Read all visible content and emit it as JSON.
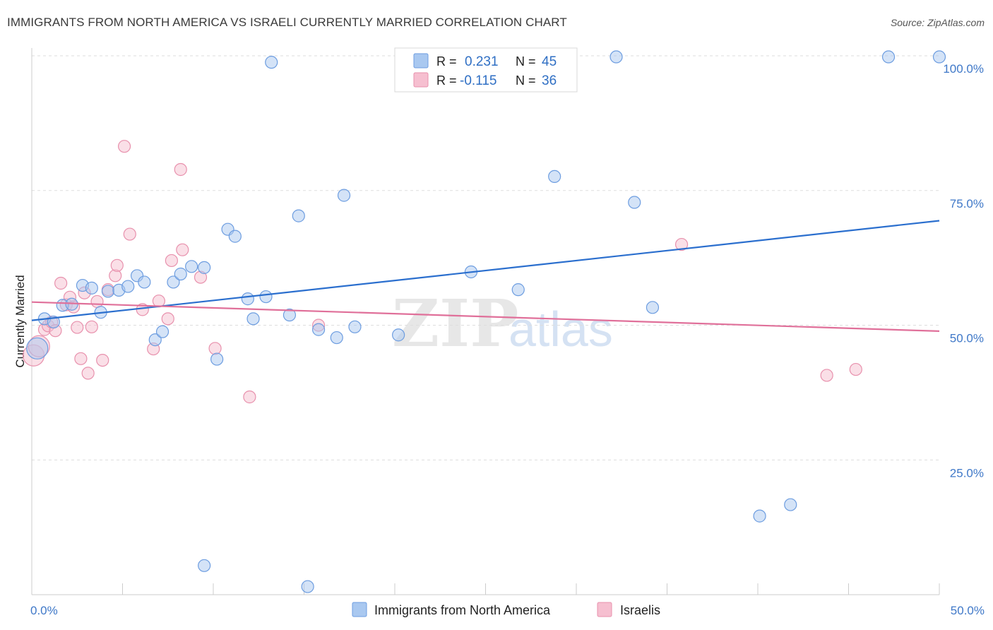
{
  "header": {
    "title": "IMMIGRANTS FROM NORTH AMERICA VS ISRAELI CURRENTLY MARRIED CORRELATION CHART",
    "source": "Source: ZipAtlas.com"
  },
  "watermark": {
    "part1": "ZIP",
    "part2": "atlas"
  },
  "colors": {
    "blue_fill": "#a9c8f0",
    "blue_stroke": "#6d9de0",
    "blue_line": "#2b6fce",
    "pink_fill": "#f6bfd0",
    "pink_stroke": "#e891ad",
    "pink_line": "#e0709a",
    "tick_text": "#3f78c8",
    "grid": "#dddddd"
  },
  "legend": {
    "rows": [
      {
        "r_label": "R =",
        "r_value": "0.231",
        "n_label": "N =",
        "n_value": "45"
      },
      {
        "r_label": "R =",
        "r_value": "-0.115",
        "n_label": "N =",
        "n_value": "36"
      }
    ]
  },
  "chart_data": {
    "type": "scatter",
    "title": "IMMIGRANTS FROM NORTH AMERICA VS ISRAELI CURRENTLY MARRIED CORRELATION CHART",
    "xlabel": "",
    "ylabel": "Currently Married",
    "xlim": [
      0,
      50
    ],
    "ylim": [
      0,
      100
    ],
    "x_tick_labels": [
      "0.0%",
      "50.0%"
    ],
    "y_ticks": [
      25,
      50,
      75,
      100
    ],
    "y_tick_labels": [
      "25.0%",
      "50.0%",
      "75.0%",
      "100.0%"
    ],
    "grid": "horizontal dashed",
    "legend_position": "top-center",
    "series": [
      {
        "name": "Immigrants from North America",
        "r": 0.231,
        "n": 45,
        "trend": {
          "x": [
            0,
            50
          ],
          "y": [
            50.9,
            69.4
          ]
        },
        "points": [
          [
            0.3,
            45.7
          ],
          [
            0.7,
            51.2
          ],
          [
            1.2,
            50.6
          ],
          [
            1.7,
            53.7
          ],
          [
            2.2,
            53.9
          ],
          [
            2.8,
            57.4
          ],
          [
            3.3,
            56.9
          ],
          [
            3.8,
            52.4
          ],
          [
            4.2,
            56.3
          ],
          [
            4.8,
            56.5
          ],
          [
            5.3,
            57.2
          ],
          [
            5.8,
            59.2
          ],
          [
            6.2,
            58.0
          ],
          [
            6.8,
            47.3
          ],
          [
            7.2,
            48.8
          ],
          [
            7.8,
            58.0
          ],
          [
            8.2,
            59.5
          ],
          [
            8.8,
            60.9
          ],
          [
            9.5,
            60.7
          ],
          [
            9.5,
            5.4
          ],
          [
            10.2,
            43.7
          ],
          [
            10.8,
            67.8
          ],
          [
            11.2,
            66.5
          ],
          [
            11.9,
            54.9
          ],
          [
            12.2,
            51.2
          ],
          [
            12.9,
            55.3
          ],
          [
            13.2,
            98.8
          ],
          [
            14.2,
            51.9
          ],
          [
            14.7,
            70.3
          ],
          [
            15.2,
            1.5
          ],
          [
            15.8,
            49.2
          ],
          [
            16.8,
            47.7
          ],
          [
            17.2,
            74.1
          ],
          [
            17.8,
            49.7
          ],
          [
            20.2,
            48.2
          ],
          [
            24.2,
            59.9
          ],
          [
            26.8,
            56.6
          ],
          [
            28.8,
            77.6
          ],
          [
            32.2,
            99.8
          ],
          [
            33.2,
            72.8
          ],
          [
            34.2,
            53.3
          ],
          [
            40.1,
            14.6
          ],
          [
            41.8,
            16.7
          ],
          [
            47.2,
            99.8
          ],
          [
            50.0,
            99.8
          ]
        ]
      },
      {
        "name": "Israelis",
        "r": -0.115,
        "n": 36,
        "trend": {
          "x": [
            0,
            50
          ],
          "y": [
            54.3,
            48.9
          ]
        },
        "points": [
          [
            0.1,
            44.4
          ],
          [
            0.4,
            46.1
          ],
          [
            0.7,
            49.2
          ],
          [
            0.9,
            49.9
          ],
          [
            1.1,
            50.6
          ],
          [
            1.3,
            49.0
          ],
          [
            1.6,
            57.8
          ],
          [
            1.9,
            53.8
          ],
          [
            2.1,
            55.2
          ],
          [
            2.3,
            53.4
          ],
          [
            2.5,
            49.6
          ],
          [
            2.7,
            43.8
          ],
          [
            2.9,
            56.0
          ],
          [
            3.1,
            41.1
          ],
          [
            3.3,
            49.7
          ],
          [
            3.6,
            54.4
          ],
          [
            3.9,
            43.5
          ],
          [
            4.2,
            56.6
          ],
          [
            4.6,
            59.2
          ],
          [
            4.7,
            61.1
          ],
          [
            5.1,
            83.2
          ],
          [
            5.4,
            66.9
          ],
          [
            6.1,
            52.9
          ],
          [
            6.7,
            45.6
          ],
          [
            7.0,
            54.5
          ],
          [
            7.5,
            51.2
          ],
          [
            7.7,
            62.0
          ],
          [
            8.2,
            78.9
          ],
          [
            8.3,
            64.0
          ],
          [
            9.3,
            58.9
          ],
          [
            10.1,
            45.7
          ],
          [
            12.0,
            36.7
          ],
          [
            15.8,
            50.0
          ],
          [
            35.8,
            65.0
          ],
          [
            43.8,
            40.7
          ],
          [
            45.4,
            41.8
          ]
        ]
      }
    ]
  }
}
